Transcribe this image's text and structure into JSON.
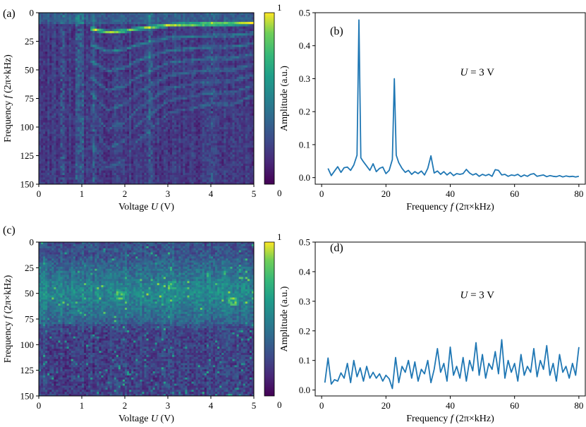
{
  "panel_labels": [
    "(a)",
    "(b)",
    "(c)",
    "(d)"
  ],
  "colorbar_ticks": {
    "top": "1",
    "bottom": "0"
  },
  "colors": {
    "line": "#1f77b4",
    "viridis_low": "#440154",
    "viridis_mid": "#21918c",
    "viridis_high": "#fde725"
  },
  "chart_data": [
    {
      "panel": "(a)",
      "type": "heatmap",
      "xlabel_pre": "Voltage ",
      "xlabel_var": "U",
      "xlabel_post": " (V)",
      "ylabel_pre": "Frequency ",
      "ylabel_var": "f",
      "ylabel_post": " (2π×kHz)",
      "xlim": [
        0,
        5
      ],
      "ylim": [
        0,
        150
      ],
      "y_inverted": true,
      "xticks": [
        "0",
        "1",
        "2",
        "3",
        "4",
        "5"
      ],
      "yticks": [
        "0",
        "25",
        "50",
        "75",
        "100",
        "125",
        "150"
      ],
      "colorbar": {
        "min": 0,
        "max": 1,
        "colormap": "viridis"
      },
      "features": {
        "fundamental_from_V": 1.2,
        "fundamental_kHz": [
          [
            1.2,
            14
          ],
          [
            1.6,
            17
          ],
          [
            2.0,
            16
          ],
          [
            2.3,
            14
          ],
          [
            2.55,
            13
          ],
          [
            3.0,
            11
          ],
          [
            4.0,
            10
          ],
          [
            4.5,
            10
          ],
          [
            5.0,
            9
          ]
        ],
        "harmonic_orders_visible": 8,
        "noise_bands_V": [
          [
            0.5,
            0.6
          ],
          [
            0.85,
            1.05
          ],
          [
            1.25,
            1.3
          ],
          [
            2.55,
            2.65
          ],
          [
            4.0,
            4.05
          ]
        ]
      }
    },
    {
      "panel": "(b)",
      "type": "line",
      "xlabel_pre": "Frequency ",
      "xlabel_var": "f",
      "xlabel_post": " (2π×kHz)",
      "ylabel": "Amplitude (a.u.)",
      "annotation_var": "U",
      "annotation_rest": " = 3 V",
      "xlim": [
        -2,
        82
      ],
      "ylim": [
        -0.02,
        0.5
      ],
      "xticks": [
        "0",
        "20",
        "40",
        "60",
        "80"
      ],
      "yticks": [
        "0.0",
        "0.1",
        "0.2",
        "0.3",
        "0.4",
        "0.5"
      ],
      "x": [
        2,
        3,
        4,
        5,
        6,
        7,
        8,
        9,
        10,
        11,
        11.6,
        12.2,
        13,
        14,
        15,
        16,
        17,
        18,
        19,
        20,
        21,
        22,
        22.6,
        23.2,
        24,
        25,
        26,
        27,
        28,
        29,
        30,
        31,
        32,
        33,
        34,
        35,
        36,
        37,
        38,
        39,
        40,
        41,
        42,
        43,
        44,
        45,
        46,
        47,
        48,
        49,
        50,
        51,
        52,
        53,
        54,
        55,
        56,
        57,
        58,
        59,
        60,
        61,
        62,
        63,
        64,
        65,
        66,
        67,
        68,
        69,
        70,
        71,
        72,
        73,
        74,
        75,
        76,
        77,
        78,
        79,
        80
      ],
      "y": [
        0.028,
        0.006,
        0.02,
        0.033,
        0.016,
        0.03,
        0.032,
        0.022,
        0.038,
        0.068,
        0.478,
        0.06,
        0.048,
        0.035,
        0.022,
        0.042,
        0.018,
        0.028,
        0.032,
        0.012,
        0.022,
        0.055,
        0.3,
        0.068,
        0.045,
        0.028,
        0.016,
        0.022,
        0.01,
        0.018,
        0.012,
        0.02,
        0.008,
        0.028,
        0.066,
        0.014,
        0.02,
        0.01,
        0.018,
        0.008,
        0.016,
        0.006,
        0.012,
        0.01,
        0.012,
        0.025,
        0.014,
        0.008,
        0.012,
        0.004,
        0.01,
        0.006,
        0.01,
        0.004,
        0.024,
        0.022,
        0.008,
        0.01,
        0.004,
        0.008,
        0.006,
        0.01,
        0.003,
        0.008,
        0.004,
        0.01,
        0.012,
        0.004,
        0.006,
        0.008,
        0.003,
        0.006,
        0.004,
        0.003,
        0.006,
        0.002,
        0.005,
        0.003,
        0.004,
        0.002,
        0.004
      ]
    },
    {
      "panel": "(c)",
      "type": "heatmap",
      "xlabel_pre": "Voltage ",
      "xlabel_var": "U",
      "xlabel_post": " (V)",
      "ylabel_pre": "Frequency ",
      "ylabel_var": "f",
      "ylabel_post": " (2π×kHz)",
      "xlim": [
        0,
        5
      ],
      "ylim": [
        0,
        150
      ],
      "y_inverted": true,
      "xticks": [
        "0",
        "1",
        "2",
        "3",
        "4",
        "5"
      ],
      "yticks": [
        "0",
        "25",
        "50",
        "75",
        "100",
        "125",
        "150"
      ],
      "colorbar": {
        "min": 0,
        "max": 1,
        "colormap": "viridis"
      },
      "features": {
        "bright_band_kHz": [
          30,
          70
        ],
        "hot_spots": [
          [
            1.9,
            52
          ],
          [
            3.1,
            42
          ],
          [
            4.5,
            58
          ]
        ]
      }
    },
    {
      "panel": "(d)",
      "type": "line",
      "xlabel_pre": "Frequency ",
      "xlabel_var": "f",
      "xlabel_post": " (2π×kHz)",
      "ylabel": "Amplitude (a.u.)",
      "annotation_var": "U",
      "annotation_rest": " = 3 V",
      "xlim": [
        -2,
        82
      ],
      "ylim": [
        -0.02,
        0.5
      ],
      "xticks": [
        "0",
        "20",
        "40",
        "60",
        "80"
      ],
      "yticks": [
        "0.0",
        "0.1",
        "0.2",
        "0.3",
        "0.4",
        "0.5"
      ],
      "x": [
        1,
        2,
        3,
        4,
        5,
        6,
        7,
        8,
        9,
        10,
        11,
        12,
        13,
        14,
        15,
        16,
        17,
        18,
        19,
        20,
        21,
        22,
        23,
        24,
        25,
        26,
        27,
        28,
        29,
        30,
        31,
        32,
        33,
        34,
        35,
        36,
        37,
        38,
        39,
        40,
        41,
        42,
        43,
        44,
        45,
        46,
        47,
        48,
        49,
        50,
        51,
        52,
        53,
        54,
        55,
        56,
        57,
        58,
        59,
        60,
        61,
        62,
        63,
        64,
        65,
        66,
        67,
        68,
        69,
        70,
        71,
        72,
        73,
        74,
        75,
        76,
        77,
        78,
        79,
        80
      ],
      "y": [
        0.025,
        0.108,
        0.02,
        0.035,
        0.03,
        0.058,
        0.04,
        0.09,
        0.025,
        0.1,
        0.045,
        0.075,
        0.03,
        0.08,
        0.04,
        0.06,
        0.04,
        0.055,
        0.03,
        0.05,
        0.038,
        0.005,
        0.11,
        0.025,
        0.08,
        0.06,
        0.1,
        0.04,
        0.095,
        0.03,
        0.07,
        0.055,
        0.1,
        0.025,
        0.07,
        0.14,
        0.06,
        0.09,
        0.03,
        0.145,
        0.05,
        0.08,
        0.04,
        0.11,
        0.03,
        0.1,
        0.065,
        0.16,
        0.05,
        0.12,
        0.04,
        0.09,
        0.07,
        0.13,
        0.055,
        0.17,
        0.04,
        0.1,
        0.06,
        0.09,
        0.03,
        0.12,
        0.05,
        0.08,
        0.06,
        0.14,
        0.045,
        0.1,
        0.07,
        0.15,
        0.05,
        0.09,
        0.03,
        0.12,
        0.06,
        0.08,
        0.04,
        0.09,
        0.05,
        0.145
      ]
    }
  ]
}
